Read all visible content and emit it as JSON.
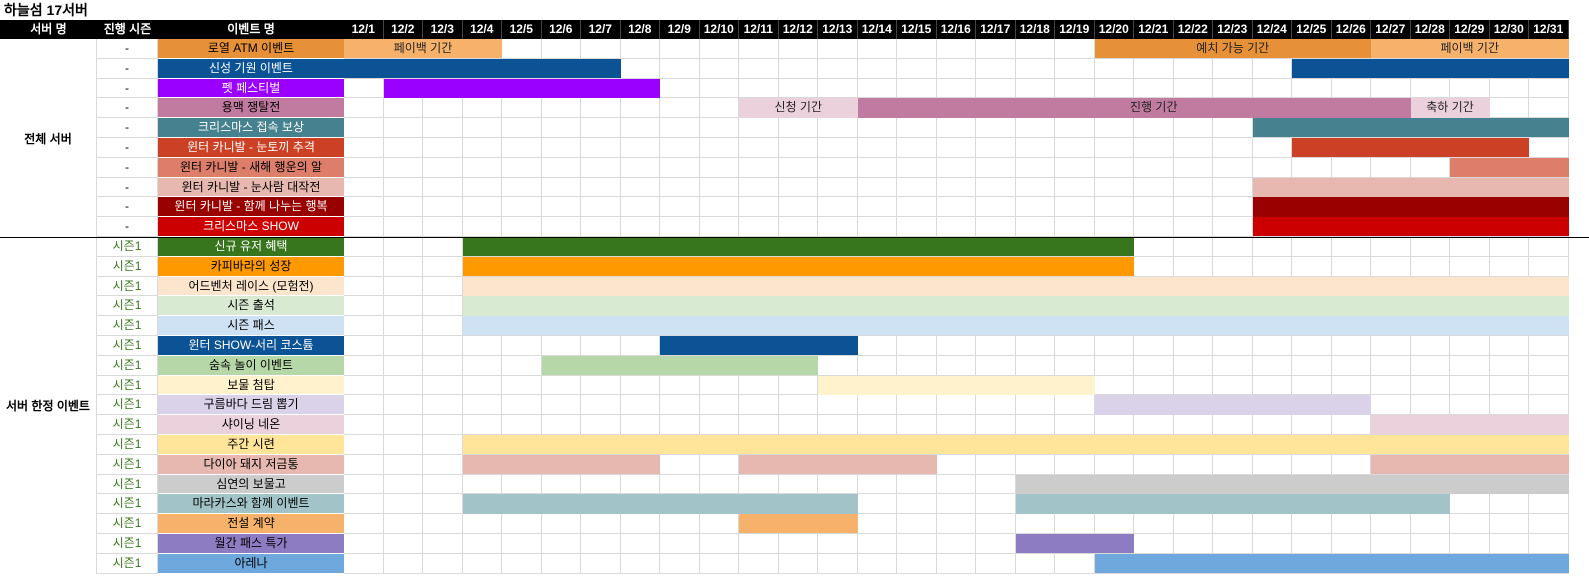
{
  "title": "하늘섬 17서버",
  "headers": {
    "server": "서버 명",
    "season": "진행 시즌",
    "event": "이벤트 명"
  },
  "dates": [
    "12/1",
    "12/2",
    "12/3",
    "12/4",
    "12/5",
    "12/6",
    "12/7",
    "12/8",
    "12/9",
    "12/10",
    "12/11",
    "12/12",
    "12/13",
    "12/14",
    "12/15",
    "12/16",
    "12/17",
    "12/18",
    "12/19",
    "12/20",
    "12/21",
    "12/22",
    "12/23",
    "12/24",
    "12/25",
    "12/26",
    "12/27",
    "12/28",
    "12/29",
    "12/30",
    "12/31"
  ],
  "groups": [
    {
      "label": "전체 서버",
      "rows": 10
    },
    {
      "label": "서버 한정 이벤트",
      "rows": 17
    }
  ],
  "rows": [
    {
      "season": "-",
      "name": "로열 ATM 이벤트",
      "color": "#e69138",
      "text": "#000000",
      "bars": [
        {
          "start": 1,
          "end": 4,
          "color": "#f6b26b",
          "label": "페이백 기간"
        },
        {
          "start": 20,
          "end": 26,
          "color": "#e69138",
          "label": "예치 가능 기간"
        },
        {
          "start": 27,
          "end": 31,
          "color": "#f6b26b",
          "label": "페이백 기간"
        }
      ]
    },
    {
      "season": "-",
      "name": "신성 기원 이벤트",
      "color": "#0b5394",
      "text": "#ffffff",
      "bars": [
        {
          "start": 1,
          "end": 7,
          "color": "#0b5394",
          "label": ""
        },
        {
          "start": 25,
          "end": 31,
          "color": "#0b5394",
          "label": ""
        }
      ]
    },
    {
      "season": "-",
      "name": "펫 페스티벌",
      "color": "#9900ff",
      "text": "#ffffff",
      "bars": [
        {
          "start": 2,
          "end": 8,
          "color": "#9900ff",
          "label": ""
        }
      ]
    },
    {
      "season": "-",
      "name": "용맥 쟁탈전",
      "color": "#c27ba0",
      "text": "#000000",
      "bars": [
        {
          "start": 11,
          "end": 13,
          "color": "#ead1dc",
          "label": "신청 기간"
        },
        {
          "start": 14,
          "end": 28,
          "color": "#c27ba0",
          "label": "진행 기간"
        },
        {
          "start": 28,
          "end": 29,
          "color": "#ead1dc",
          "label": "축하 기간"
        }
      ]
    },
    {
      "season": "-",
      "name": "크리스마스 접속 보상",
      "color": "#45818e",
      "text": "#ffffff",
      "bars": [
        {
          "start": 24,
          "end": 31,
          "color": "#45818e",
          "label": ""
        }
      ]
    },
    {
      "season": "-",
      "name": "윈터 카니발 - 눈토끼 추격",
      "color": "#cc4125",
      "text": "#ffffff",
      "bars": [
        {
          "start": 25,
          "end": 30,
          "color": "#cc4125",
          "label": ""
        }
      ]
    },
    {
      "season": "-",
      "name": "윈터 카니발 - 새해 행운의 알",
      "color": "#dd7e6b",
      "text": "#000000",
      "bars": [
        {
          "start": 29,
          "end": 31,
          "color": "#dd7e6b",
          "label": ""
        }
      ]
    },
    {
      "season": "-",
      "name": "윈터 카니발 - 눈사람 대작전",
      "color": "#e6b8af",
      "text": "#000000",
      "bars": [
        {
          "start": 24,
          "end": 31,
          "color": "#e6b8af",
          "label": ""
        }
      ]
    },
    {
      "season": "-",
      "name": "윈터 카니발 - 함께 나누는 행복",
      "color": "#990000",
      "text": "#ffffff",
      "bars": [
        {
          "start": 24,
          "end": 31,
          "color": "#990000",
          "label": ""
        }
      ]
    },
    {
      "season": "-",
      "name": "크리스마스 SHOW",
      "color": "#cc0000",
      "text": "#ffffff",
      "bars": [
        {
          "start": 24,
          "end": 31,
          "color": "#cc0000",
          "label": ""
        }
      ]
    },
    {
      "season": "시즌1",
      "name": "신규 유저 혜택",
      "color": "#38761d",
      "text": "#ffffff",
      "bars": [
        {
          "start": 4,
          "end": 20,
          "color": "#38761d",
          "label": ""
        }
      ]
    },
    {
      "season": "시즌1",
      "name": "카피바라의 성장",
      "color": "#ff9900",
      "text": "#000000",
      "bars": [
        {
          "start": 4,
          "end": 20,
          "color": "#ff9900",
          "label": ""
        }
      ]
    },
    {
      "season": "시즌1",
      "name": "어드벤처 레이스 (모험전)",
      "color": "#fce5cd",
      "text": "#000000",
      "bars": [
        {
          "start": 4,
          "end": 31,
          "color": "#fce5cd",
          "label": ""
        }
      ]
    },
    {
      "season": "시즌1",
      "name": "시즌 출석",
      "color": "#d9ead3",
      "text": "#000000",
      "bars": [
        {
          "start": 4,
          "end": 31,
          "color": "#d9ead3",
          "label": ""
        }
      ]
    },
    {
      "season": "시즌1",
      "name": "시즌 패스",
      "color": "#cfe2f3",
      "text": "#000000",
      "bars": [
        {
          "start": 4,
          "end": 31,
          "color": "#cfe2f3",
          "label": ""
        }
      ]
    },
    {
      "season": "시즌1",
      "name": "윈터 SHOW-서리 코스튬",
      "color": "#0b5394",
      "text": "#ffffff",
      "bars": [
        {
          "start": 9,
          "end": 13,
          "color": "#0b5394",
          "label": ""
        }
      ]
    },
    {
      "season": "시즌1",
      "name": "숨속 놀이 이벤트",
      "color": "#b6d7a8",
      "text": "#000000",
      "bars": [
        {
          "start": 6,
          "end": 12,
          "color": "#b6d7a8",
          "label": ""
        }
      ]
    },
    {
      "season": "시즌1",
      "name": "보물 첨탑",
      "color": "#fff2cc",
      "text": "#000000",
      "bars": [
        {
          "start": 13,
          "end": 19,
          "color": "#fff2cc",
          "label": ""
        }
      ]
    },
    {
      "season": "시즌1",
      "name": "구름바다 드림 뽑기",
      "color": "#d9d2e9",
      "text": "#000000",
      "bars": [
        {
          "start": 20,
          "end": 26,
          "color": "#d9d2e9",
          "label": ""
        }
      ]
    },
    {
      "season": "시즌1",
      "name": "샤이닝 네온",
      "color": "#ead1dc",
      "text": "#000000",
      "bars": [
        {
          "start": 27,
          "end": 31,
          "color": "#ead1dc",
          "label": ""
        }
      ]
    },
    {
      "season": "시즌1",
      "name": "주간 시련",
      "color": "#ffe599",
      "text": "#000000",
      "bars": [
        {
          "start": 4,
          "end": 31,
          "color": "#ffe599",
          "label": ""
        }
      ]
    },
    {
      "season": "시즌1",
      "name": "다이아 돼지 저금통",
      "color": "#e6b8af",
      "text": "#000000",
      "bars": [
        {
          "start": 4,
          "end": 8,
          "color": "#e6b8af",
          "label": ""
        },
        {
          "start": 11,
          "end": 15,
          "color": "#e6b8af",
          "label": ""
        },
        {
          "start": 27,
          "end": 31,
          "color": "#e6b8af",
          "label": ""
        }
      ]
    },
    {
      "season": "시즌1",
      "name": "심연의 보물고",
      "color": "#cccccc",
      "text": "#000000",
      "bars": [
        {
          "start": 18,
          "end": 31,
          "color": "#cccccc",
          "label": ""
        }
      ]
    },
    {
      "season": "시즌1",
      "name": "마라카스와 함께 이벤트",
      "color": "#a2c4c9",
      "text": "#000000",
      "bars": [
        {
          "start": 4,
          "end": 13,
          "color": "#a2c4c9",
          "label": ""
        },
        {
          "start": 18,
          "end": 28,
          "color": "#a2c4c9",
          "label": ""
        }
      ]
    },
    {
      "season": "시즌1",
      "name": "전설 계약",
      "color": "#f6b26b",
      "text": "#000000",
      "bars": [
        {
          "start": 11,
          "end": 13,
          "color": "#f6b26b",
          "label": ""
        }
      ]
    },
    {
      "season": "시즌1",
      "name": "월간 패스 특가",
      "color": "#8e7cc3",
      "text": "#000000",
      "bars": [
        {
          "start": 18,
          "end": 20,
          "color": "#8e7cc3",
          "label": ""
        }
      ]
    },
    {
      "season": "시즌1",
      "name": "아레나",
      "color": "#6fa8dc",
      "text": "#000000",
      "bars": [
        {
          "start": 20,
          "end": 31,
          "color": "#6fa8dc",
          "label": ""
        }
      ]
    }
  ]
}
